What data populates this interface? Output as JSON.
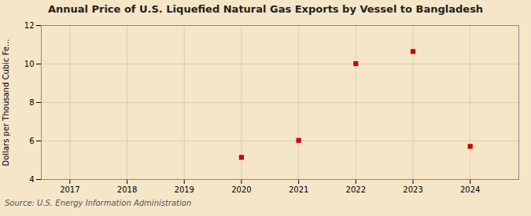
{
  "chart_data": {
    "type": "scatter",
    "title": "Annual Price of U.S. Liquefied Natural Gas Exports by Vessel to Bangladesh",
    "ylabel": "Dollars per Thousand Cubic Fe...",
    "annotations": [
      "Source: U.S. Energy Information Administration"
    ],
    "x": [
      2020,
      2021,
      2022,
      2023,
      2024
    ],
    "values": [
      5.15,
      6.03,
      10.02,
      10.65,
      5.72
    ],
    "color": "#cc0000",
    "marker": "square",
    "xlim": [
      2016.5,
      2024.85
    ],
    "xticks": [
      2017,
      2018,
      2019,
      2020,
      2021,
      2022,
      2023,
      2024
    ],
    "ylim": [
      4,
      12
    ],
    "yticks": [
      4,
      6,
      8,
      10,
      12
    ],
    "grid": true
  }
}
